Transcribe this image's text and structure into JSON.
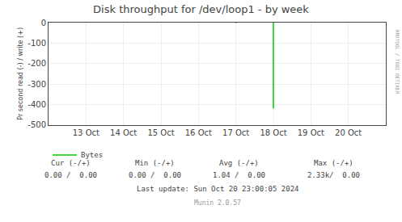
{
  "chart_data": {
    "type": "line",
    "title": "Disk throughput for /dev/loop1 - by week",
    "ylabel": "Pr second read (-) / write (+)",
    "xlim": [
      1728691200,
      1729468800
    ],
    "xticks": [
      {
        "value": 1728777600,
        "label": "13 Oct"
      },
      {
        "value": 1728864000,
        "label": "14 Oct"
      },
      {
        "value": 1728950400,
        "label": "15 Oct"
      },
      {
        "value": 1729036800,
        "label": "16 Oct"
      },
      {
        "value": 1729123200,
        "label": "17 Oct"
      },
      {
        "value": 1729209600,
        "label": "18 Oct"
      },
      {
        "value": 1729296000,
        "label": "19 Oct"
      },
      {
        "value": 1729382400,
        "label": "20 Oct"
      }
    ],
    "ylim": [
      -500,
      0
    ],
    "yticks": [
      0,
      -100,
      -200,
      -300,
      -400,
      -500
    ],
    "grid": true,
    "legend": "bottom",
    "series": [
      {
        "name": "Bytes",
        "color": "#00cc00",
        "x": [
          1729209600,
          1729209600,
          null,
          1729123200,
          1729123200
        ],
        "values": [
          -420,
          0,
          null,
          -3,
          0
        ]
      }
    ],
    "annotations": [
      "Cur (-/+)",
      "Min (-/+)",
      "Avg (-/+)",
      "Max (-/+)",
      "0.00 /  0.00",
      "0.00 /  0.00",
      "1.04 /  0.00",
      "2.33k/  0.00",
      "Last update: Sun Oct 20 23:00:05 2024",
      "Munin 2.0.57",
      "RRDTOOL / TOBI OETIKER"
    ]
  }
}
